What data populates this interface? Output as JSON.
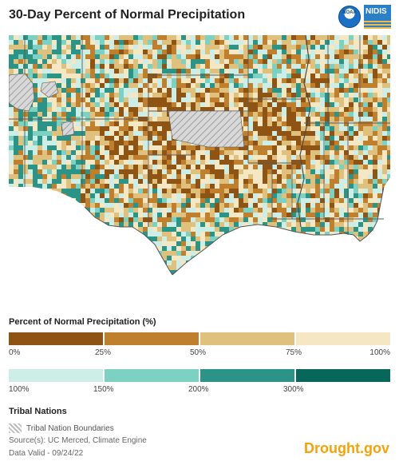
{
  "title": "30-Day Percent of Normal Precipitation",
  "logos": {
    "noaa_text": "NOAA",
    "nidis_text": "NIDIS"
  },
  "legend": {
    "title": "Percent of Normal Precipitation (%)",
    "dry": {
      "colors": [
        "#8f5413",
        "#c07f2c",
        "#e0c07d",
        "#f6e7c4"
      ],
      "ticks": [
        "0%",
        "25%",
        "50%",
        "75%",
        "100%"
      ]
    },
    "wet": {
      "colors": [
        "#cdeee7",
        "#7cd1c2",
        "#2c9486",
        "#07675a"
      ],
      "ticks": [
        "100%",
        "150%",
        "200%",
        "300%"
      ]
    }
  },
  "tribal": {
    "title": "Tribal Nations",
    "label": "Tribal Nation Boundaries"
  },
  "source": "Source(s): UC Merced, Climate Engine",
  "valid": "Data Valid - 09/24/22",
  "brand": "Drought.gov"
}
